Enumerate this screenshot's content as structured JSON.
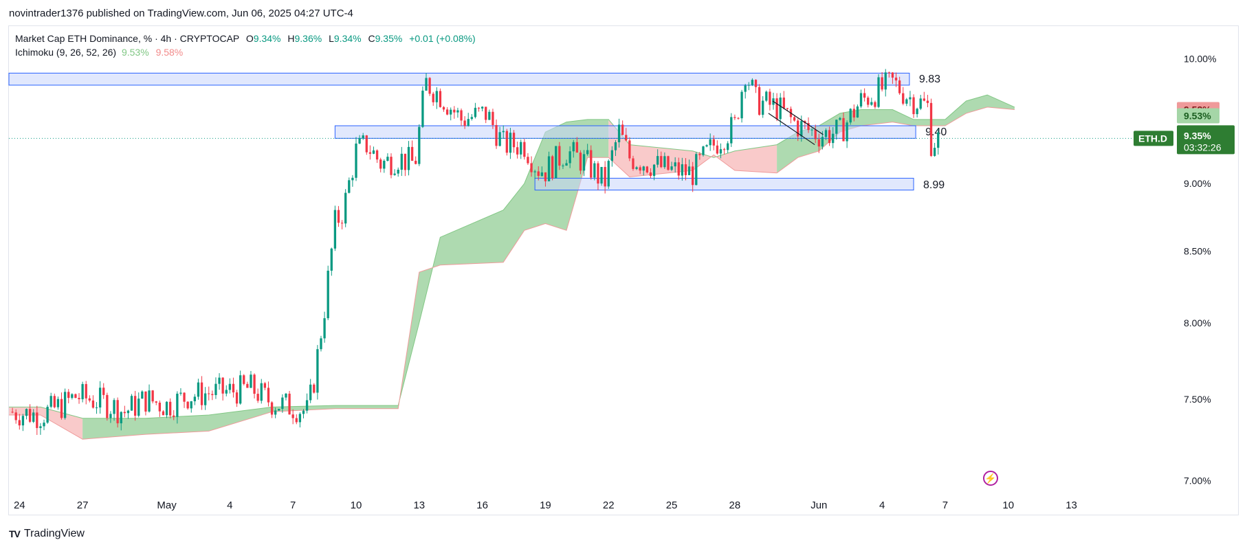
{
  "header": {
    "publisher": "novintrader1376 published on TradingView.com, Jun 06, 2025 04:27 UTC-4"
  },
  "legend": {
    "symbol": "Market Cap ETH Dominance, % · 4h · CRYPTOCAP",
    "open_label": "O",
    "open": "9.34%",
    "high_label": "H",
    "high": "9.36%",
    "low_label": "L",
    "low": "9.34%",
    "close_label": "C",
    "close": "9.35%",
    "change": "+0.01 (+0.08%)",
    "indicator": "Ichimoku (9, 26, 52, 26)",
    "indicator_a": "9.53%",
    "indicator_b": "9.58%"
  },
  "footer": {
    "logo": "TV",
    "brand": "TradingView"
  },
  "colors": {
    "up": "#089981",
    "down": "#f23645",
    "cloud_bull": "#a5d6a7",
    "cloud_bear": "#f8c4c4",
    "zone_fill": "#c8d6fb",
    "zone_stroke": "#2962ff",
    "price_tag": "#2e7d32",
    "tag_red": "#ef9a9a",
    "tag_green": "#a5d6a7"
  },
  "icons": {
    "alert": "lightning-bolt-icon"
  },
  "chart_data": {
    "type": "candlestick",
    "title": "Market Cap ETH Dominance, % · 4h · CRYPTOCAP",
    "ylabel": "",
    "xlabel": "",
    "yscale": "log",
    "ylim": [
      6.95,
      10.15
    ],
    "y_ticks": [
      "10.00%",
      "9.00%",
      "8.50%",
      "8.00%",
      "7.50%",
      "7.00%"
    ],
    "y_tick_values": [
      10.0,
      9.0,
      8.5,
      8.0,
      7.5,
      7.0
    ],
    "x_ticks": [
      "24",
      "27",
      "May",
      "4",
      "7",
      "10",
      "13",
      "16",
      "19",
      "22",
      "25",
      "28",
      "Jun",
      "4",
      "7",
      "10",
      "13"
    ],
    "x_tick_days": [
      -6,
      -3,
      1,
      4,
      7,
      10,
      13,
      16,
      19,
      22,
      25,
      28,
      32,
      35,
      38,
      41,
      44
    ],
    "xlim_days": [
      -6.5,
      44.7
    ],
    "price_path": [
      [
        -6.5,
        7.42
      ],
      [
        -5,
        7.4
      ],
      [
        -4,
        7.46
      ],
      [
        -3.3,
        7.52
      ],
      [
        -2,
        7.48
      ],
      [
        -1,
        7.42
      ],
      [
        0,
        7.5
      ],
      [
        1,
        7.46
      ],
      [
        2,
        7.52
      ],
      [
        3,
        7.54
      ],
      [
        4,
        7.55
      ],
      [
        5,
        7.57
      ],
      [
        6,
        7.48
      ],
      [
        7,
        7.45
      ],
      [
        7.7,
        7.42
      ],
      [
        8.0,
        7.62
      ],
      [
        8.5,
        8.1
      ],
      [
        9.0,
        8.7
      ],
      [
        9.4,
        8.8
      ],
      [
        10.0,
        9.25
      ],
      [
        10.5,
        9.3
      ],
      [
        11.2,
        9.15
      ],
      [
        12,
        9.2
      ],
      [
        12.8,
        9.15
      ],
      [
        13.3,
        9.8
      ],
      [
        14,
        9.7
      ],
      [
        15,
        9.5
      ],
      [
        16.2,
        9.55
      ],
      [
        17,
        9.3
      ],
      [
        18,
        9.3
      ],
      [
        18.6,
        9.12
      ],
      [
        19,
        9.1
      ],
      [
        20,
        9.25
      ],
      [
        21,
        9.15
      ],
      [
        21.8,
        9.0
      ],
      [
        22.5,
        9.4
      ],
      [
        23,
        9.2
      ],
      [
        24,
        9.15
      ],
      [
        25,
        9.1
      ],
      [
        26,
        9.08
      ],
      [
        27,
        9.3
      ],
      [
        28,
        9.45
      ],
      [
        28.5,
        9.9
      ],
      [
        29,
        9.65
      ],
      [
        30,
        9.6
      ],
      [
        31,
        9.45
      ],
      [
        32,
        9.38
      ],
      [
        33,
        9.4
      ],
      [
        34,
        9.65
      ],
      [
        35,
        9.75
      ],
      [
        35.5,
        9.8
      ],
      [
        36.3,
        9.68
      ],
      [
        37.2,
        9.6
      ],
      [
        37.3,
        9.32
      ],
      [
        37.8,
        9.35
      ]
    ],
    "last_date_label": "Jun 6",
    "last_price": "9.35%",
    "last_price_value": 9.35,
    "countdown": "03:32:26",
    "symbol_tag": "ETH.D",
    "ichimoku": {
      "span_a_label": "9.58%",
      "span_a": 9.58,
      "span_b_label": "9.53%",
      "span_b": 9.53,
      "cloud_upper": [
        [
          -6.5,
          7.45
        ],
        [
          -5,
          7.45
        ],
        [
          -3,
          7.38
        ],
        [
          0,
          7.38
        ],
        [
          3,
          7.4
        ],
        [
          6,
          7.45
        ],
        [
          9,
          7.46
        ],
        [
          12,
          7.46
        ],
        [
          13,
          8.0
        ],
        [
          14,
          8.6
        ],
        [
          17,
          8.8
        ],
        [
          18,
          9.0
        ],
        [
          19,
          9.4
        ],
        [
          20,
          9.48
        ],
        [
          21,
          9.5
        ],
        [
          22,
          9.5
        ],
        [
          23,
          9.3
        ],
        [
          26,
          9.25
        ],
        [
          27,
          9.2
        ],
        [
          28,
          9.25
        ],
        [
          30,
          9.3
        ],
        [
          31,
          9.4
        ],
        [
          32,
          9.45
        ],
        [
          33,
          9.55
        ],
        [
          34,
          9.58
        ],
        [
          35.5,
          9.58
        ],
        [
          36.5,
          9.5
        ],
        [
          38,
          9.5
        ],
        [
          39,
          9.65
        ],
        [
          40,
          9.7
        ],
        [
          41.3,
          9.6
        ]
      ],
      "cloud_lower": [
        [
          -6.5,
          7.4
        ],
        [
          -5,
          7.4
        ],
        [
          -3,
          7.25
        ],
        [
          0,
          7.28
        ],
        [
          3,
          7.3
        ],
        [
          6,
          7.42
        ],
        [
          9,
          7.44
        ],
        [
          12,
          7.44
        ],
        [
          13,
          8.35
        ],
        [
          14,
          8.4
        ],
        [
          17,
          8.42
        ],
        [
          18,
          8.65
        ],
        [
          19,
          8.7
        ],
        [
          20,
          8.65
        ],
        [
          21,
          9.2
        ],
        [
          22,
          9.2
        ],
        [
          23,
          9.05
        ],
        [
          26,
          9.1
        ],
        [
          27,
          9.22
        ],
        [
          28,
          9.1
        ],
        [
          30,
          9.08
        ],
        [
          31,
          9.2
        ],
        [
          32,
          9.25
        ],
        [
          33,
          9.4
        ],
        [
          34,
          9.45
        ],
        [
          35.5,
          9.48
        ],
        [
          36.5,
          9.45
        ],
        [
          38,
          9.45
        ],
        [
          39,
          9.55
        ],
        [
          40,
          9.6
        ],
        [
          41.3,
          9.58
        ]
      ]
    },
    "levels": [
      {
        "label": "9.83",
        "value": 9.83,
        "range": [
          9.78,
          9.88
        ],
        "from_day": -6.5,
        "to_day": 36.3
      },
      {
        "label": "9.40",
        "value": 9.4,
        "range": [
          9.35,
          9.45
        ],
        "from_day": 9.0,
        "to_day": 36.6
      },
      {
        "label": "8.99",
        "value": 8.99,
        "range": [
          8.95,
          9.04
        ],
        "from_day": 18.5,
        "to_day": 36.5
      }
    ],
    "channel": [
      [
        [
          29.8,
          9.65
        ],
        [
          32.2,
          9.38
        ]
      ],
      [
        [
          29.6,
          9.55
        ],
        [
          31.8,
          9.3
        ]
      ]
    ]
  }
}
